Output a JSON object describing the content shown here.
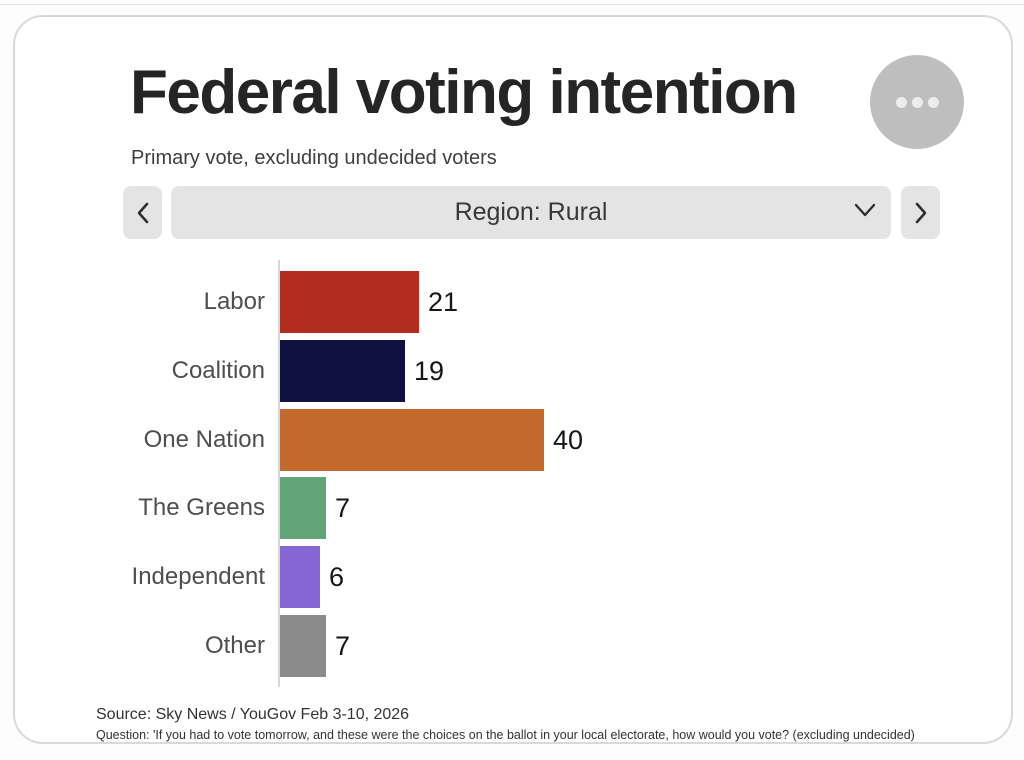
{
  "chart_data": {
    "type": "bar",
    "orientation": "horizontal",
    "title": "Federal voting intention",
    "subtitle": "Primary vote, excluding undecided voters",
    "categories": [
      "Labor",
      "Coalition",
      "One Nation",
      "The Greens",
      "Independent",
      "Other"
    ],
    "values": [
      21,
      19,
      40,
      7,
      6,
      7
    ],
    "colors": [
      "#b22c20",
      "#0f1240",
      "#c2692b",
      "#63a577",
      "#8567d3",
      "#8b8b8b"
    ],
    "value_labels_shown": true,
    "xlim": [
      0,
      45
    ],
    "grid": false,
    "legend": false,
    "source": "Source: Sky News / YouGov Feb 3-10, 2026",
    "question": "Question: 'If you had to vote tomorrow, and these were the choices on the ballot in your local electorate, how would you vote? (excluding undecided)"
  },
  "selector": {
    "value": "Region: Rural",
    "prev_icon": "chevron-left",
    "next_icon": "chevron-right",
    "dropdown_icon": "chevron-down"
  },
  "menu_button": {
    "icon": "more-options-dots",
    "circle_color": "#989898"
  }
}
